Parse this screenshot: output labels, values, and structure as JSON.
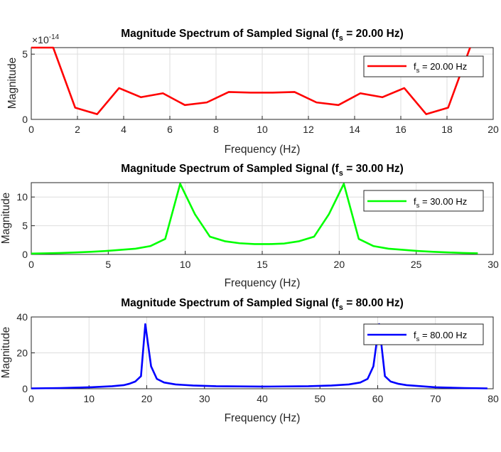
{
  "chart_data": [
    {
      "type": "line",
      "title_main": "Magnitude Spectrum of Sampled Signal (f",
      "title_sub": "s",
      "title_tail": " = 20.00 Hz)",
      "xlabel": "Frequency (Hz)",
      "ylabel": "Magnitude",
      "xlim": [
        0,
        20
      ],
      "ylim": [
        0,
        5.5
      ],
      "xticks": [
        0,
        2,
        4,
        6,
        8,
        10,
        12,
        14,
        16,
        18,
        20
      ],
      "yticks": [
        0,
        5
      ],
      "exponent_base": "×10",
      "exponent_power": "-14",
      "grid": true,
      "legend_position": "top-right",
      "color": "#ff0000",
      "series": [
        {
          "legend_main": "f",
          "legend_sub": "s",
          "legend_tail": " = 20.00 Hz",
          "x": [
            0,
            0.95,
            1.9,
            2.85,
            3.8,
            4.75,
            5.7,
            6.65,
            7.6,
            8.55,
            9.5,
            10.45,
            11.4,
            12.35,
            13.3,
            14.25,
            15.2,
            16.15,
            17.1,
            18.05,
            19.0
          ],
          "y": [
            5.5,
            5.5,
            0.9,
            0.4,
            2.4,
            1.7,
            2.0,
            1.1,
            1.3,
            2.1,
            2.05,
            2.05,
            2.1,
            1.3,
            1.1,
            2.0,
            1.7,
            2.4,
            0.4,
            0.9,
            5.5
          ]
        }
      ]
    },
    {
      "type": "line",
      "title_main": "Magnitude Spectrum of Sampled Signal (f",
      "title_sub": "s",
      "title_tail": " = 30.00 Hz)",
      "xlabel": "Frequency (Hz)",
      "ylabel": "Magnitude",
      "xlim": [
        0,
        30
      ],
      "ylim": [
        0,
        12.5
      ],
      "xticks": [
        0,
        5,
        10,
        15,
        20,
        25,
        30
      ],
      "yticks": [
        0,
        5,
        10
      ],
      "grid": true,
      "legend_position": "top-right",
      "color": "#00ff00",
      "series": [
        {
          "legend_main": "f",
          "legend_sub": "s",
          "legend_tail": " = 30.00 Hz",
          "x": [
            0,
            0.97,
            1.93,
            2.9,
            3.87,
            4.83,
            5.8,
            6.77,
            7.73,
            8.7,
            9.67,
            10.63,
            11.6,
            12.57,
            13.53,
            14.5,
            15.47,
            16.43,
            17.4,
            18.37,
            19.33,
            20.3,
            21.27,
            22.23,
            23.2,
            24.17,
            25.13,
            26.1,
            27.07,
            28.03,
            29.0
          ],
          "y": [
            0.15,
            0.2,
            0.25,
            0.35,
            0.45,
            0.6,
            0.8,
            1.0,
            1.45,
            2.7,
            12.3,
            7.0,
            3.1,
            2.3,
            1.95,
            1.8,
            1.8,
            1.9,
            2.3,
            3.1,
            7.0,
            12.3,
            2.7,
            1.45,
            1.0,
            0.8,
            0.6,
            0.45,
            0.35,
            0.25,
            0.2
          ]
        }
      ]
    },
    {
      "type": "line",
      "title_main": "Magnitude Spectrum of Sampled Signal (f",
      "title_sub": "s",
      "title_tail": " = 80.00 Hz)",
      "xlabel": "Frequency (Hz)",
      "ylabel": "Magnitude",
      "xlim": [
        0,
        80
      ],
      "ylim": [
        0,
        40
      ],
      "xticks": [
        0,
        10,
        20,
        30,
        40,
        50,
        60,
        70,
        80
      ],
      "yticks": [
        0,
        20,
        40
      ],
      "grid": true,
      "legend_position": "top-right",
      "color": "#0000ff",
      "series": [
        {
          "legend_main": "f",
          "legend_sub": "s",
          "legend_tail": " = 80.00 Hz",
          "x": [
            0,
            5,
            10,
            14,
            16,
            17,
            18,
            19,
            19.75,
            20.75,
            21.75,
            23,
            25,
            28,
            32,
            40,
            48,
            52,
            55,
            57,
            58.25,
            59.25,
            60.25,
            61.25,
            62.25,
            63.5,
            65,
            70,
            75,
            79
          ],
          "y": [
            0.2,
            0.4,
            0.8,
            1.4,
            2.0,
            2.8,
            4.0,
            7.0,
            36.0,
            12.5,
            5.5,
            3.5,
            2.4,
            1.8,
            1.4,
            1.2,
            1.4,
            1.8,
            2.4,
            3.5,
            5.5,
            12.5,
            36.0,
            7.0,
            4.0,
            2.8,
            2.0,
            0.8,
            0.4,
            0.2
          ]
        }
      ]
    }
  ]
}
